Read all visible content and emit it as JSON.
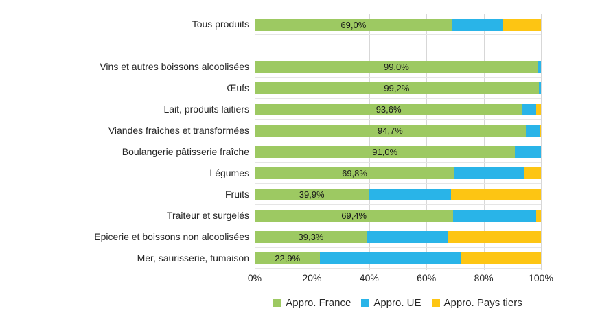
{
  "chart_data": {
    "type": "bar",
    "orientation": "horizontal",
    "stacked": true,
    "title": "",
    "xlabel": "",
    "ylabel": "",
    "xlim": [
      0,
      100
    ],
    "grid": true,
    "legend_position": "bottom",
    "background": "#FFFFFF",
    "gridline_color": "#D7D7D7",
    "x_ticks": [
      "0%",
      "20%",
      "40%",
      "60%",
      "80%",
      "100%"
    ],
    "categories": [
      "Tous produits",
      "Vins et autres boissons alcoolisées",
      "Œufs",
      "Lait, produits laitiers",
      "Viandes fraîches et transformées",
      "Boulangerie pâtisserie fraîche",
      "Légumes",
      "Fruits",
      "Traiteur et surgelés",
      "Epicerie et boissons non alcoolisées",
      "Mer, saurisserie, fumaison"
    ],
    "series": [
      {
        "name": "Appro. France",
        "color": "#9DC962",
        "values": [
          69.0,
          99.0,
          99.2,
          93.6,
          94.7,
          91.0,
          69.8,
          39.9,
          69.4,
          39.3,
          22.9
        ]
      },
      {
        "name": "Appro. UE",
        "color": "#29B4E8",
        "values": [
          17.6,
          1.0,
          0.8,
          4.7,
          4.8,
          9.0,
          24.2,
          28.6,
          29.0,
          28.3,
          49.4
        ]
      },
      {
        "name": "Appro. Pays tiers",
        "color": "#FDC513",
        "values": [
          13.4,
          0.0,
          0.0,
          1.7,
          0.5,
          0.0,
          6.0,
          31.5,
          1.6,
          32.4,
          27.7
        ]
      }
    ],
    "data_labels": [
      "69,0%",
      "99,0%",
      "99,2%",
      "93,6%",
      "94,7%",
      "91,0%",
      "69,8%",
      "39,9%",
      "69,4%",
      "39,3%",
      "22,9%"
    ],
    "spacer_after_index": 0
  }
}
